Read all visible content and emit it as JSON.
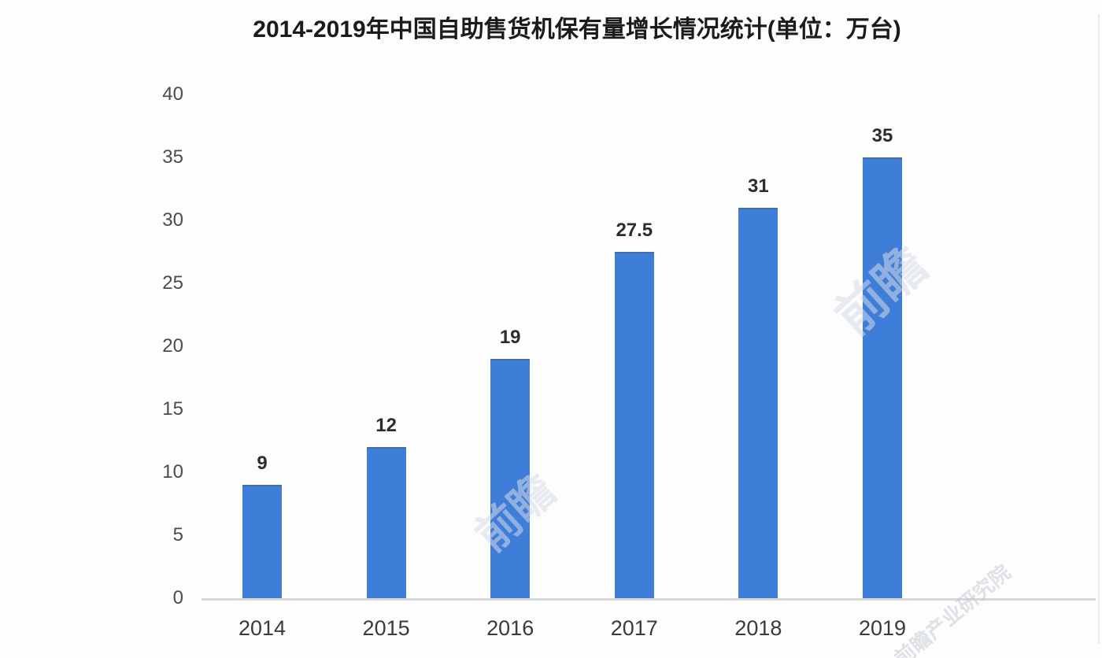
{
  "title": "2014-2019年中国自助售货机保有量增长情况统计(单位：万台)",
  "chart_data": {
    "type": "bar",
    "title": "2014-2019年中国自助售货机保有量增长情况统计(单位：万台)",
    "unit_note": "单位：万台",
    "categories": [
      "2014",
      "2015",
      "2016",
      "2017",
      "2018",
      "2019"
    ],
    "values": [
      9,
      12,
      19,
      27.5,
      31,
      35
    ],
    "value_labels": [
      "9",
      "12",
      "19",
      "27.5",
      "31",
      "35"
    ],
    "yticks": [
      40,
      35,
      30,
      25,
      20,
      15,
      10,
      5,
      0
    ],
    "ylim": [
      0,
      40
    ],
    "xlabel": "",
    "ylabel": "",
    "grid": false,
    "legend": false,
    "bar_color": "#3e7dd8",
    "axis_line_color": "#d8d8d8",
    "background_color": "#fdfdfd",
    "title_color": "#1b1b1b"
  },
  "watermark": {
    "short": "前瞻",
    "full": "前瞻产业研究院"
  }
}
